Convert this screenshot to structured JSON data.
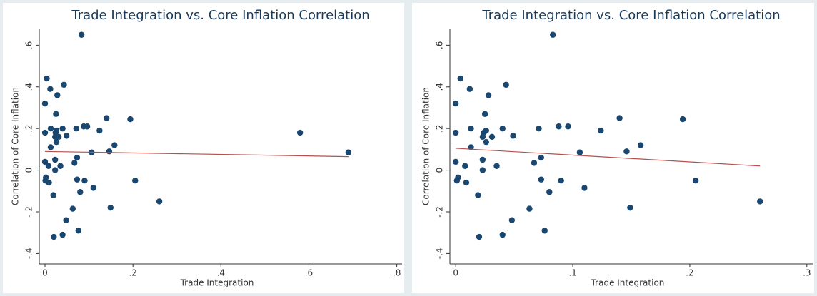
{
  "chart_data": [
    {
      "type": "scatter",
      "title": "Trade Integration vs. Core Inflation Correlation",
      "x_label": "Trade Integration",
      "y_label": "Correlation of Core Inflation",
      "color": "#1a476f",
      "fit_color": "#b5504d",
      "x": [
        0,
        0.004,
        0.012,
        0.028,
        0.043,
        0.083,
        0,
        0.013,
        0.025,
        0.024,
        0.026,
        0.023,
        0.026,
        0.031,
        0.04,
        0.049,
        0.071,
        0.088,
        0.096,
        0.124,
        0.14,
        0.194,
        0.146,
        0.158,
        0.106,
        0,
        0.013,
        0.023,
        0.008,
        0.035,
        0.023,
        0.067,
        0.073,
        0.001,
        0.002,
        0.009,
        0.019,
        0.073,
        0.09,
        0.11,
        0.205,
        0.26,
        0.08,
        0.063,
        0.048,
        0.149,
        0.04,
        0.02,
        0.076,
        0.58,
        0.69
      ],
      "y": [
        0.32,
        0.44,
        0.39,
        0.36,
        0.41,
        0.65,
        0.18,
        0.2,
        0.27,
        0.18,
        0.19,
        0.16,
        0.135,
        0.16,
        0.2,
        0.165,
        0.2,
        0.21,
        0.21,
        0.19,
        0.25,
        0.245,
        0.09,
        0.12,
        0.085,
        0.04,
        0.11,
        0.05,
        0.02,
        0.02,
        0,
        0.035,
        0.06,
        -0.05,
        -0.035,
        -0.06,
        -0.12,
        -0.045,
        -0.05,
        -0.085,
        -0.05,
        -0.15,
        -0.105,
        -0.185,
        -0.24,
        -0.18,
        -0.31,
        -0.32,
        -0.29,
        0.18,
        0.085
      ],
      "fit": {
        "x": [
          0,
          0.69
        ],
        "y": [
          0.09,
          0.065
        ]
      },
      "xlim": [
        -0.013,
        0.812
      ],
      "ylim": [
        -0.45,
        0.68
      ],
      "xticks": [
        0,
        {
          "value": 0.2,
          "label": ".2"
        },
        {
          "value": 0.4,
          "label": ".4"
        },
        {
          "value": 0.6,
          "label": ".6"
        },
        {
          "value": 0.8,
          "label": ".8"
        }
      ],
      "yticks": [
        {
          "value": -0.4,
          "label": "-.4"
        },
        {
          "value": -0.2,
          "label": "-.2"
        },
        0,
        {
          "value": 0.2,
          "label": ".2"
        },
        {
          "value": 0.4,
          "label": ".4"
        },
        {
          "value": 0.6,
          "label": ".6"
        }
      ]
    },
    {
      "type": "scatter",
      "title": "Trade Integration vs. Core Inflation Correlation",
      "x_label": "Trade Integration",
      "y_label": "Correlation of Core Inflation",
      "color": "#1a476f",
      "fit_color": "#b5504d",
      "x": [
        0,
        0.004,
        0.012,
        0.028,
        0.043,
        0.083,
        0,
        0.013,
        0.025,
        0.024,
        0.026,
        0.023,
        0.026,
        0.031,
        0.04,
        0.049,
        0.071,
        0.088,
        0.096,
        0.124,
        0.14,
        0.194,
        0.146,
        0.158,
        0.106,
        0,
        0.013,
        0.023,
        0.008,
        0.035,
        0.023,
        0.067,
        0.073,
        0.001,
        0.002,
        0.009,
        0.019,
        0.073,
        0.09,
        0.11,
        0.205,
        0.26,
        0.08,
        0.063,
        0.048,
        0.149,
        0.04,
        0.02,
        0.076
      ],
      "y": [
        0.32,
        0.44,
        0.39,
        0.36,
        0.41,
        0.65,
        0.18,
        0.2,
        0.27,
        0.18,
        0.19,
        0.16,
        0.135,
        0.16,
        0.2,
        0.165,
        0.2,
        0.21,
        0.21,
        0.19,
        0.25,
        0.245,
        0.09,
        0.12,
        0.085,
        0.04,
        0.11,
        0.05,
        0.02,
        0.02,
        0,
        0.035,
        0.06,
        -0.05,
        -0.035,
        -0.06,
        -0.12,
        -0.045,
        -0.05,
        -0.085,
        -0.05,
        -0.15,
        -0.105,
        -0.185,
        -0.24,
        -0.18,
        -0.31,
        -0.32,
        -0.29
      ],
      "fit": {
        "x": [
          0,
          0.26
        ],
        "y": [
          0.105,
          0.02
        ]
      },
      "xlim": [
        -0.005,
        0.305
      ],
      "ylim": [
        -0.45,
        0.68
      ],
      "xticks": [
        0,
        {
          "value": 0.1,
          "label": ".1"
        },
        {
          "value": 0.2,
          "label": ".2"
        },
        {
          "value": 0.3,
          "label": ".3"
        }
      ],
      "yticks": [
        {
          "value": -0.4,
          "label": "-.4"
        },
        {
          "value": -0.2,
          "label": "-.2"
        },
        0,
        {
          "value": 0.2,
          "label": ".2"
        },
        {
          "value": 0.4,
          "label": ".4"
        },
        {
          "value": 0.6,
          "label": ".6"
        }
      ]
    }
  ]
}
